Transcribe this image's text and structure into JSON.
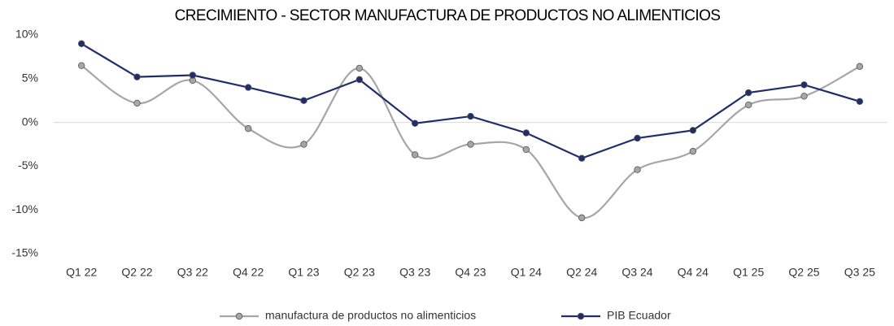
{
  "chart_data": {
    "type": "line",
    "title": "CRECIMIENTO - SECTOR MANUFACTURA DE PRODUCTOS NO ALIMENTICIOS",
    "categories": [
      "Q1 22",
      "Q2 22",
      "Q3 22",
      "Q4 22",
      "Q1 23",
      "Q2 23",
      "Q3 23",
      "Q4 23",
      "Q1 24",
      "Q2 24",
      "Q3 24",
      "Q4 24",
      "Q1 25",
      "Q2 25",
      "Q3 25"
    ],
    "series": [
      {
        "name": "manufactura de productos no alimenticios",
        "color": "#a6a6a6",
        "smooth": true,
        "values": [
          6.5,
          2.2,
          4.8,
          -0.7,
          -2.5,
          6.2,
          -3.7,
          -2.5,
          -3.1,
          -10.9,
          -5.4,
          -3.3,
          2.0,
          3.0,
          6.4
        ]
      },
      {
        "name": "PIB Ecuador",
        "color": "#1f2d6b",
        "smooth": false,
        "values": [
          9.0,
          5.2,
          5.4,
          4.0,
          2.5,
          4.9,
          -0.1,
          0.7,
          -1.2,
          -4.1,
          -1.8,
          -0.9,
          3.4,
          4.3,
          2.4
        ]
      }
    ],
    "ylim": [
      -15,
      10
    ],
    "yticks": [
      {
        "value": -15,
        "label": "-15%"
      },
      {
        "value": -10,
        "label": "-10%"
      },
      {
        "value": -5,
        "label": "-5%"
      },
      {
        "value": 0,
        "label": "0%"
      },
      {
        "value": 5,
        "label": "5%"
      },
      {
        "value": 10,
        "label": "10%"
      }
    ],
    "grid": false,
    "legend": "bottom"
  }
}
